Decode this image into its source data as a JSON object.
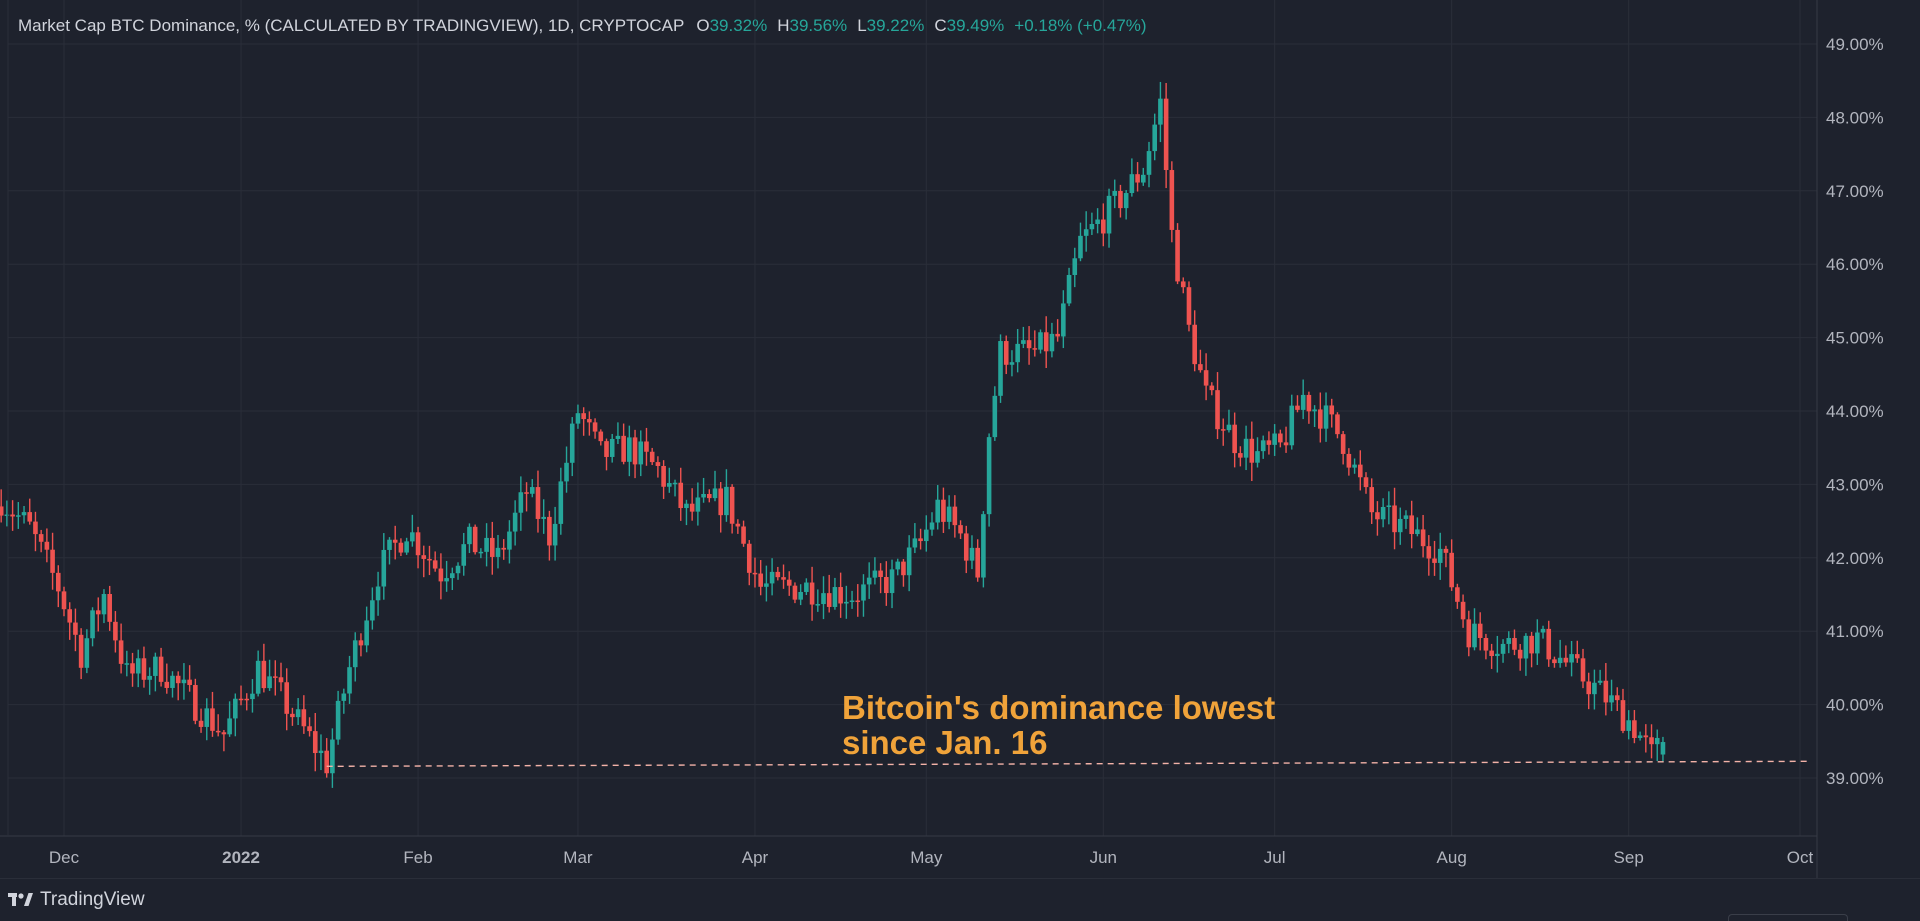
{
  "header": {
    "symbol": "Market Cap BTC Dominance, % (CALCULATED BY TRADINGVIEW), 1D, CRYPTOCAP",
    "o_label": "O",
    "o_value": "39.32%",
    "h_label": "H",
    "h_value": "39.56%",
    "l_label": "L",
    "l_value": "39.22%",
    "c_label": "C",
    "c_value": "39.49%",
    "change": "+0.18% (+0.47%)"
  },
  "annotation": {
    "line1": "Bitcoin's dominance lowest",
    "line2": "since Jan. 16"
  },
  "footer": {
    "brand": "TradingView"
  },
  "colors": {
    "background": "#1e222d",
    "grid": "#2a2e39",
    "up": "#26a69a",
    "down": "#ef5350",
    "annotation": "#f0a33a",
    "text": "#d1d4dc",
    "axis_text": "#b2b5be"
  },
  "chart_data": {
    "type": "candlestick",
    "title": "Market Cap BTC Dominance, % (CALCULATED BY TRADINGVIEW), 1D, CRYPTOCAP",
    "ylim": [
      38.2,
      49.4
    ],
    "y_ticks": [
      39,
      40,
      41,
      42,
      43,
      44,
      45,
      46,
      47,
      48,
      49
    ],
    "y_tick_labels": [
      "39.00%",
      "40.00%",
      "41.00%",
      "42.00%",
      "43.00%",
      "44.00%",
      "45.00%",
      "46.00%",
      "47.00%",
      "48.00%",
      "49.00%"
    ],
    "x_tick_labels": [
      {
        "label": "Dec",
        "date": "2021-12-01",
        "bold": false
      },
      {
        "label": "2022",
        "date": "2022-01-01",
        "bold": true
      },
      {
        "label": "Feb",
        "date": "2022-02-01",
        "bold": false
      },
      {
        "label": "Mar",
        "date": "2022-03-01",
        "bold": false
      },
      {
        "label": "Apr",
        "date": "2022-04-01",
        "bold": false
      },
      {
        "label": "May",
        "date": "2022-05-01",
        "bold": false
      },
      {
        "label": "Jun",
        "date": "2022-06-01",
        "bold": false
      },
      {
        "label": "Jul",
        "date": "2022-07-01",
        "bold": false
      },
      {
        "label": "Aug",
        "date": "2022-08-01",
        "bold": false
      },
      {
        "label": "Sep",
        "date": "2022-09-01",
        "bold": false
      },
      {
        "label": "Oct",
        "date": "2022-10-01",
        "bold": false
      }
    ],
    "x_start": "2021-11-20",
    "x_end": "2022-10-01",
    "close_anchors": [
      [
        "2021-11-20",
        42.8
      ],
      [
        "2021-11-25",
        42.4
      ],
      [
        "2021-11-30",
        41.6
      ],
      [
        "2021-12-04",
        40.7
      ],
      [
        "2021-12-08",
        41.5
      ],
      [
        "2021-12-12",
        40.4
      ],
      [
        "2021-12-18",
        40.5
      ],
      [
        "2021-12-24",
        40.0
      ],
      [
        "2021-12-29",
        39.6
      ],
      [
        "2022-01-04",
        40.5
      ],
      [
        "2022-01-08",
        40.1
      ],
      [
        "2022-01-16",
        39.2
      ],
      [
        "2022-01-20",
        40.5
      ],
      [
        "2022-01-25",
        41.8
      ],
      [
        "2022-01-30",
        42.4
      ],
      [
        "2022-02-05",
        41.8
      ],
      [
        "2022-02-10",
        42.2
      ],
      [
        "2022-02-15",
        42.0
      ],
      [
        "2022-02-20",
        42.9
      ],
      [
        "2022-02-24",
        42.3
      ],
      [
        "2022-03-01",
        44.0
      ],
      [
        "2022-03-05",
        43.4
      ],
      [
        "2022-03-10",
        43.5
      ],
      [
        "2022-03-15",
        43.2
      ],
      [
        "2022-03-20",
        42.6
      ],
      [
        "2022-03-27",
        42.8
      ],
      [
        "2022-04-02",
        41.6
      ],
      [
        "2022-04-10",
        41.6
      ],
      [
        "2022-04-18",
        41.5
      ],
      [
        "2022-04-25",
        41.7
      ],
      [
        "2022-04-30",
        42.2
      ],
      [
        "2022-05-03",
        42.7
      ],
      [
        "2022-05-07",
        42.3
      ],
      [
        "2022-05-10",
        41.8
      ],
      [
        "2022-05-12",
        43.7
      ],
      [
        "2022-05-14",
        44.8
      ],
      [
        "2022-05-20",
        44.8
      ],
      [
        "2022-05-24",
        45.0
      ],
      [
        "2022-05-28",
        46.3
      ],
      [
        "2022-06-03",
        46.8
      ],
      [
        "2022-06-08",
        47.3
      ],
      [
        "2022-06-11",
        48.2
      ],
      [
        "2022-06-13",
        46.4
      ],
      [
        "2022-06-16",
        45.1
      ],
      [
        "2022-06-19",
        44.2
      ],
      [
        "2022-06-24",
        43.6
      ],
      [
        "2022-06-28",
        43.4
      ],
      [
        "2022-07-02",
        43.5
      ],
      [
        "2022-07-06",
        44.2
      ],
      [
        "2022-07-10",
        43.9
      ],
      [
        "2022-07-13",
        43.6
      ],
      [
        "2022-07-18",
        42.6
      ],
      [
        "2022-07-24",
        42.4
      ],
      [
        "2022-07-30",
        42.1
      ],
      [
        "2022-08-04",
        41.0
      ],
      [
        "2022-08-10",
        40.8
      ],
      [
        "2022-08-16",
        40.9
      ],
      [
        "2022-08-22",
        40.5
      ],
      [
        "2022-08-28",
        40.1
      ],
      [
        "2022-09-02",
        39.7
      ],
      [
        "2022-09-05",
        39.3
      ],
      [
        "2022-09-07",
        39.49
      ]
    ],
    "support_line": {
      "value": 39.2,
      "from": "2022-01-16",
      "to": "2022-10-01",
      "style": "dashed"
    },
    "grid": true,
    "y_axis_position": "right"
  }
}
